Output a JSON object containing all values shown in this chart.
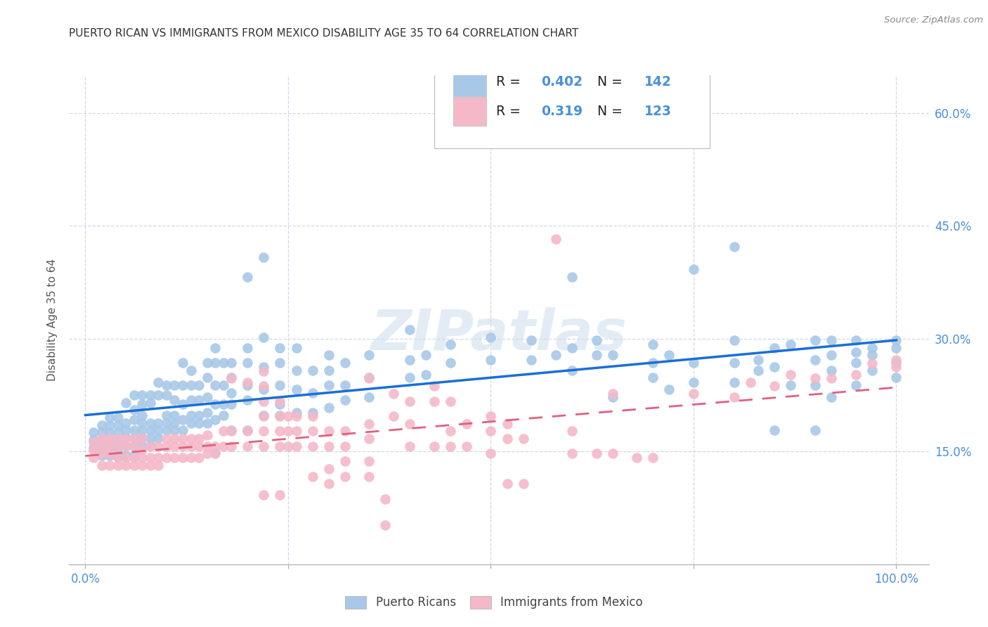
{
  "title": "PUERTO RICAN VS IMMIGRANTS FROM MEXICO DISABILITY AGE 35 TO 64 CORRELATION CHART",
  "source": "Source: ZipAtlas.com",
  "ylabel": "Disability Age 35 to 64",
  "legend_blue_label": "Puerto Ricans",
  "legend_pink_label": "Immigrants from Mexico",
  "R_blue": "0.402",
  "N_blue": "142",
  "R_pink": "0.319",
  "N_pink": "123",
  "watermark": "ZIPatlas",
  "blue_color": "#a8c8e8",
  "pink_color": "#f4b8c8",
  "blue_line_color": "#1a6fd4",
  "pink_line_color": "#e06080",
  "tick_color": "#4a90d9",
  "text_color": "#333333",
  "grid_color": "#d0d8e8",
  "blue_scatter": [
    [
      0.01,
      0.155
    ],
    [
      0.01,
      0.165
    ],
    [
      0.01,
      0.175
    ],
    [
      0.02,
      0.145
    ],
    [
      0.02,
      0.155
    ],
    [
      0.02,
      0.165
    ],
    [
      0.02,
      0.175
    ],
    [
      0.02,
      0.185
    ],
    [
      0.03,
      0.145
    ],
    [
      0.03,
      0.155
    ],
    [
      0.03,
      0.165
    ],
    [
      0.03,
      0.175
    ],
    [
      0.03,
      0.185
    ],
    [
      0.03,
      0.195
    ],
    [
      0.04,
      0.145
    ],
    [
      0.04,
      0.155
    ],
    [
      0.04,
      0.165
    ],
    [
      0.04,
      0.175
    ],
    [
      0.04,
      0.185
    ],
    [
      0.04,
      0.195
    ],
    [
      0.05,
      0.145
    ],
    [
      0.05,
      0.158
    ],
    [
      0.05,
      0.168
    ],
    [
      0.05,
      0.178
    ],
    [
      0.05,
      0.188
    ],
    [
      0.05,
      0.215
    ],
    [
      0.06,
      0.145
    ],
    [
      0.06,
      0.158
    ],
    [
      0.06,
      0.168
    ],
    [
      0.06,
      0.178
    ],
    [
      0.06,
      0.192
    ],
    [
      0.06,
      0.205
    ],
    [
      0.06,
      0.225
    ],
    [
      0.07,
      0.158
    ],
    [
      0.07,
      0.168
    ],
    [
      0.07,
      0.178
    ],
    [
      0.07,
      0.188
    ],
    [
      0.07,
      0.198
    ],
    [
      0.07,
      0.213
    ],
    [
      0.07,
      0.225
    ],
    [
      0.08,
      0.158
    ],
    [
      0.08,
      0.168
    ],
    [
      0.08,
      0.178
    ],
    [
      0.08,
      0.188
    ],
    [
      0.08,
      0.215
    ],
    [
      0.08,
      0.225
    ],
    [
      0.09,
      0.168
    ],
    [
      0.09,
      0.178
    ],
    [
      0.09,
      0.188
    ],
    [
      0.09,
      0.225
    ],
    [
      0.09,
      0.242
    ],
    [
      0.1,
      0.178
    ],
    [
      0.1,
      0.188
    ],
    [
      0.1,
      0.198
    ],
    [
      0.1,
      0.225
    ],
    [
      0.1,
      0.238
    ],
    [
      0.11,
      0.178
    ],
    [
      0.11,
      0.188
    ],
    [
      0.11,
      0.198
    ],
    [
      0.11,
      0.218
    ],
    [
      0.11,
      0.238
    ],
    [
      0.12,
      0.178
    ],
    [
      0.12,
      0.192
    ],
    [
      0.12,
      0.213
    ],
    [
      0.12,
      0.238
    ],
    [
      0.12,
      0.268
    ],
    [
      0.13,
      0.188
    ],
    [
      0.13,
      0.198
    ],
    [
      0.13,
      0.218
    ],
    [
      0.13,
      0.238
    ],
    [
      0.13,
      0.258
    ],
    [
      0.14,
      0.188
    ],
    [
      0.14,
      0.198
    ],
    [
      0.14,
      0.218
    ],
    [
      0.14,
      0.238
    ],
    [
      0.15,
      0.188
    ],
    [
      0.15,
      0.202
    ],
    [
      0.15,
      0.222
    ],
    [
      0.15,
      0.248
    ],
    [
      0.15,
      0.268
    ],
    [
      0.16,
      0.148
    ],
    [
      0.16,
      0.192
    ],
    [
      0.16,
      0.213
    ],
    [
      0.16,
      0.238
    ],
    [
      0.16,
      0.268
    ],
    [
      0.16,
      0.288
    ],
    [
      0.17,
      0.198
    ],
    [
      0.17,
      0.213
    ],
    [
      0.17,
      0.238
    ],
    [
      0.17,
      0.268
    ],
    [
      0.18,
      0.178
    ],
    [
      0.18,
      0.213
    ],
    [
      0.18,
      0.228
    ],
    [
      0.18,
      0.248
    ],
    [
      0.18,
      0.268
    ],
    [
      0.2,
      0.178
    ],
    [
      0.2,
      0.218
    ],
    [
      0.2,
      0.238
    ],
    [
      0.2,
      0.268
    ],
    [
      0.2,
      0.288
    ],
    [
      0.2,
      0.382
    ],
    [
      0.22,
      0.198
    ],
    [
      0.22,
      0.232
    ],
    [
      0.22,
      0.262
    ],
    [
      0.22,
      0.302
    ],
    [
      0.22,
      0.408
    ],
    [
      0.24,
      0.198
    ],
    [
      0.24,
      0.213
    ],
    [
      0.24,
      0.238
    ],
    [
      0.24,
      0.268
    ],
    [
      0.24,
      0.288
    ],
    [
      0.26,
      0.202
    ],
    [
      0.26,
      0.232
    ],
    [
      0.26,
      0.258
    ],
    [
      0.26,
      0.288
    ],
    [
      0.28,
      0.202
    ],
    [
      0.28,
      0.228
    ],
    [
      0.28,
      0.258
    ],
    [
      0.3,
      0.208
    ],
    [
      0.3,
      0.238
    ],
    [
      0.3,
      0.258
    ],
    [
      0.3,
      0.278
    ],
    [
      0.32,
      0.218
    ],
    [
      0.32,
      0.238
    ],
    [
      0.32,
      0.268
    ],
    [
      0.35,
      0.222
    ],
    [
      0.35,
      0.248
    ],
    [
      0.35,
      0.278
    ],
    [
      0.4,
      0.248
    ],
    [
      0.4,
      0.272
    ],
    [
      0.4,
      0.312
    ],
    [
      0.42,
      0.252
    ],
    [
      0.42,
      0.278
    ],
    [
      0.45,
      0.268
    ],
    [
      0.45,
      0.292
    ],
    [
      0.5,
      0.272
    ],
    [
      0.5,
      0.302
    ],
    [
      0.55,
      0.272
    ],
    [
      0.55,
      0.298
    ],
    [
      0.58,
      0.278
    ],
    [
      0.6,
      0.258
    ],
    [
      0.6,
      0.288
    ],
    [
      0.6,
      0.382
    ],
    [
      0.63,
      0.278
    ],
    [
      0.63,
      0.298
    ],
    [
      0.65,
      0.222
    ],
    [
      0.65,
      0.278
    ],
    [
      0.7,
      0.248
    ],
    [
      0.7,
      0.268
    ],
    [
      0.7,
      0.292
    ],
    [
      0.72,
      0.232
    ],
    [
      0.72,
      0.278
    ],
    [
      0.75,
      0.242
    ],
    [
      0.75,
      0.268
    ],
    [
      0.75,
      0.392
    ],
    [
      0.8,
      0.242
    ],
    [
      0.8,
      0.268
    ],
    [
      0.8,
      0.298
    ],
    [
      0.8,
      0.422
    ],
    [
      0.83,
      0.258
    ],
    [
      0.83,
      0.272
    ],
    [
      0.85,
      0.178
    ],
    [
      0.85,
      0.262
    ],
    [
      0.85,
      0.288
    ],
    [
      0.87,
      0.238
    ],
    [
      0.87,
      0.292
    ],
    [
      0.9,
      0.178
    ],
    [
      0.9,
      0.238
    ],
    [
      0.9,
      0.272
    ],
    [
      0.9,
      0.298
    ],
    [
      0.92,
      0.222
    ],
    [
      0.92,
      0.258
    ],
    [
      0.92,
      0.278
    ],
    [
      0.92,
      0.298
    ],
    [
      0.95,
      0.238
    ],
    [
      0.95,
      0.268
    ],
    [
      0.95,
      0.282
    ],
    [
      0.95,
      0.298
    ],
    [
      0.97,
      0.258
    ],
    [
      0.97,
      0.278
    ],
    [
      0.97,
      0.288
    ],
    [
      1.0,
      0.248
    ],
    [
      1.0,
      0.268
    ],
    [
      1.0,
      0.288
    ],
    [
      1.0,
      0.298
    ]
  ],
  "pink_scatter": [
    [
      0.01,
      0.142
    ],
    [
      0.01,
      0.152
    ],
    [
      0.01,
      0.162
    ],
    [
      0.02,
      0.132
    ],
    [
      0.02,
      0.147
    ],
    [
      0.02,
      0.157
    ],
    [
      0.02,
      0.167
    ],
    [
      0.03,
      0.132
    ],
    [
      0.03,
      0.147
    ],
    [
      0.03,
      0.157
    ],
    [
      0.03,
      0.167
    ],
    [
      0.04,
      0.132
    ],
    [
      0.04,
      0.142
    ],
    [
      0.04,
      0.157
    ],
    [
      0.04,
      0.167
    ],
    [
      0.05,
      0.132
    ],
    [
      0.05,
      0.142
    ],
    [
      0.05,
      0.157
    ],
    [
      0.05,
      0.167
    ],
    [
      0.06,
      0.132
    ],
    [
      0.06,
      0.142
    ],
    [
      0.06,
      0.157
    ],
    [
      0.06,
      0.167
    ],
    [
      0.07,
      0.132
    ],
    [
      0.07,
      0.142
    ],
    [
      0.07,
      0.152
    ],
    [
      0.07,
      0.167
    ],
    [
      0.08,
      0.132
    ],
    [
      0.08,
      0.142
    ],
    [
      0.08,
      0.157
    ],
    [
      0.09,
      0.132
    ],
    [
      0.09,
      0.142
    ],
    [
      0.09,
      0.157
    ],
    [
      0.1,
      0.142
    ],
    [
      0.1,
      0.157
    ],
    [
      0.1,
      0.167
    ],
    [
      0.11,
      0.142
    ],
    [
      0.11,
      0.157
    ],
    [
      0.11,
      0.167
    ],
    [
      0.12,
      0.142
    ],
    [
      0.12,
      0.157
    ],
    [
      0.12,
      0.167
    ],
    [
      0.13,
      0.142
    ],
    [
      0.13,
      0.157
    ],
    [
      0.13,
      0.167
    ],
    [
      0.14,
      0.142
    ],
    [
      0.14,
      0.157
    ],
    [
      0.14,
      0.167
    ],
    [
      0.15,
      0.147
    ],
    [
      0.15,
      0.157
    ],
    [
      0.15,
      0.172
    ],
    [
      0.16,
      0.147
    ],
    [
      0.16,
      0.157
    ],
    [
      0.17,
      0.157
    ],
    [
      0.17,
      0.177
    ],
    [
      0.18,
      0.157
    ],
    [
      0.18,
      0.177
    ],
    [
      0.18,
      0.247
    ],
    [
      0.2,
      0.157
    ],
    [
      0.2,
      0.177
    ],
    [
      0.2,
      0.242
    ],
    [
      0.22,
      0.092
    ],
    [
      0.22,
      0.157
    ],
    [
      0.22,
      0.177
    ],
    [
      0.22,
      0.197
    ],
    [
      0.22,
      0.217
    ],
    [
      0.22,
      0.237
    ],
    [
      0.22,
      0.257
    ],
    [
      0.24,
      0.092
    ],
    [
      0.24,
      0.157
    ],
    [
      0.24,
      0.177
    ],
    [
      0.24,
      0.197
    ],
    [
      0.24,
      0.217
    ],
    [
      0.25,
      0.157
    ],
    [
      0.25,
      0.177
    ],
    [
      0.25,
      0.197
    ],
    [
      0.26,
      0.157
    ],
    [
      0.26,
      0.177
    ],
    [
      0.26,
      0.197
    ],
    [
      0.28,
      0.117
    ],
    [
      0.28,
      0.157
    ],
    [
      0.28,
      0.177
    ],
    [
      0.28,
      0.197
    ],
    [
      0.3,
      0.107
    ],
    [
      0.3,
      0.127
    ],
    [
      0.3,
      0.157
    ],
    [
      0.3,
      0.177
    ],
    [
      0.32,
      0.117
    ],
    [
      0.32,
      0.137
    ],
    [
      0.32,
      0.157
    ],
    [
      0.32,
      0.177
    ],
    [
      0.35,
      0.117
    ],
    [
      0.35,
      0.137
    ],
    [
      0.35,
      0.167
    ],
    [
      0.35,
      0.187
    ],
    [
      0.35,
      0.247
    ],
    [
      0.37,
      0.052
    ],
    [
      0.37,
      0.087
    ],
    [
      0.38,
      0.197
    ],
    [
      0.38,
      0.227
    ],
    [
      0.4,
      0.157
    ],
    [
      0.4,
      0.187
    ],
    [
      0.4,
      0.217
    ],
    [
      0.43,
      0.157
    ],
    [
      0.43,
      0.217
    ],
    [
      0.43,
      0.237
    ],
    [
      0.45,
      0.157
    ],
    [
      0.45,
      0.177
    ],
    [
      0.45,
      0.217
    ],
    [
      0.47,
      0.157
    ],
    [
      0.47,
      0.187
    ],
    [
      0.5,
      0.147
    ],
    [
      0.5,
      0.177
    ],
    [
      0.5,
      0.197
    ],
    [
      0.52,
      0.107
    ],
    [
      0.52,
      0.167
    ],
    [
      0.52,
      0.187
    ],
    [
      0.54,
      0.107
    ],
    [
      0.54,
      0.167
    ],
    [
      0.58,
      0.432
    ],
    [
      0.6,
      0.147
    ],
    [
      0.6,
      0.177
    ],
    [
      0.63,
      0.147
    ],
    [
      0.65,
      0.147
    ],
    [
      0.65,
      0.227
    ],
    [
      0.68,
      0.142
    ],
    [
      0.7,
      0.142
    ],
    [
      0.75,
      0.227
    ],
    [
      0.8,
      0.222
    ],
    [
      0.82,
      0.242
    ],
    [
      0.85,
      0.237
    ],
    [
      0.87,
      0.252
    ],
    [
      0.9,
      0.247
    ],
    [
      0.92,
      0.247
    ],
    [
      0.95,
      0.252
    ],
    [
      0.97,
      0.267
    ],
    [
      1.0,
      0.262
    ],
    [
      1.0,
      0.272
    ]
  ],
  "xlim": [
    -0.02,
    1.04
  ],
  "ylim": [
    0.0,
    0.65
  ],
  "yticks": [
    0.0,
    0.15,
    0.3,
    0.45,
    0.6
  ],
  "xticks": [
    0.0,
    0.25,
    0.5,
    0.75,
    1.0
  ]
}
